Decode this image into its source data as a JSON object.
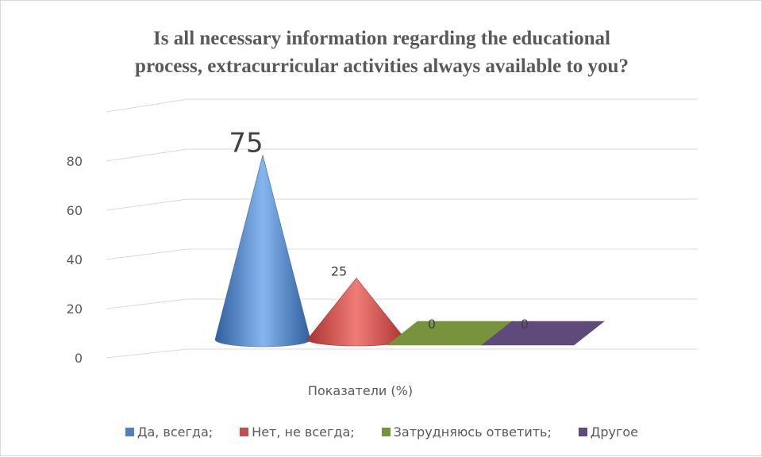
{
  "chart_data": {
    "type": "3d-cone-bar",
    "title_lines": [
      "Is all necessary information regarding the educational",
      "process, extracurricular activities always available to you?"
    ],
    "xlabel": "Показатели (%)",
    "ylabel": "",
    "ylim": [
      0,
      80
    ],
    "yticks": [
      0,
      20,
      40,
      60,
      80
    ],
    "series": [
      {
        "name": "Да, всегда;",
        "value": 75,
        "label": "75",
        "color": "#4f81bd"
      },
      {
        "name": "Нет, не всегда;",
        "value": 25,
        "label": "25",
        "color": "#c0504d"
      },
      {
        "name": "Затрудняюсь ответить;",
        "value": 0,
        "label": "0",
        "color": "#77933c"
      },
      {
        "name": "Другое",
        "value": 0,
        "label": "0",
        "color": "#604a7b"
      }
    ],
    "grid": true,
    "legend_position": "bottom"
  }
}
